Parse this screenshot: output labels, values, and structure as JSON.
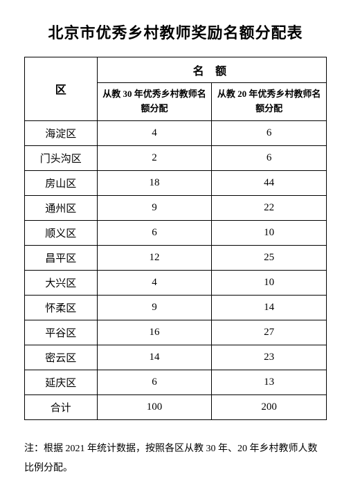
{
  "title": "北京市优秀乡村教师奖励名额分配表",
  "table": {
    "header_district": "区",
    "header_quota": "名 额",
    "subheader_30": "从教 30 年优秀乡村教师名额分配",
    "subheader_20": "从教 20 年优秀乡村教师名额分配",
    "rows": [
      {
        "district": "海淀区",
        "v30": "4",
        "v20": "6"
      },
      {
        "district": "门头沟区",
        "v30": "2",
        "v20": "6"
      },
      {
        "district": "房山区",
        "v30": "18",
        "v20": "44"
      },
      {
        "district": "通州区",
        "v30": "9",
        "v20": "22"
      },
      {
        "district": "顺义区",
        "v30": "6",
        "v20": "10"
      },
      {
        "district": "昌平区",
        "v30": "12",
        "v20": "25"
      },
      {
        "district": "大兴区",
        "v30": "4",
        "v20": "10"
      },
      {
        "district": "怀柔区",
        "v30": "9",
        "v20": "14"
      },
      {
        "district": "平谷区",
        "v30": "16",
        "v20": "27"
      },
      {
        "district": "密云区",
        "v30": "14",
        "v20": "23"
      },
      {
        "district": "延庆区",
        "v30": "6",
        "v20": "13"
      },
      {
        "district": "合计",
        "v30": "100",
        "v20": "200"
      }
    ]
  },
  "footnote": "注：根据 2021 年统计数据，按照各区从教 30 年、20 年乡村教师人数比例分配。",
  "colors": {
    "text": "#000000",
    "background": "#ffffff",
    "border": "#000000"
  }
}
